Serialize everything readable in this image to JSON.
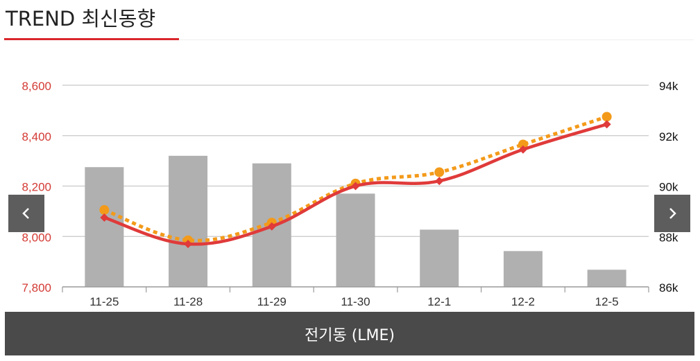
{
  "header": {
    "title": "TREND 최신동향"
  },
  "caption": "전기동 (LME)",
  "nav": {
    "prev_icon": "chevron-left-icon",
    "next_icon": "chevron-right-icon"
  },
  "colors": {
    "accent": "#d9262c",
    "left_axis_text": "#d33a34",
    "bar": "#b0b0b0",
    "line_solid": "#e03a3a",
    "line_dotted": "#f39a1a",
    "caption_bg": "#4a4a4a",
    "nav_bg": "#5d5d5d"
  },
  "chart_data": {
    "type": "bar",
    "categories": [
      "11-25",
      "11-28",
      "11-29",
      "11-30",
      "12-1",
      "12-2",
      "12-5"
    ],
    "y_left": {
      "ticks": [
        "7,800",
        "8,000",
        "8,200",
        "8,400",
        "8,600"
      ],
      "range": [
        7800,
        8600
      ]
    },
    "y_right": {
      "ticks": [
        "86k",
        "88k",
        "90k",
        "92k",
        "94k"
      ],
      "range": [
        86000,
        94000
      ]
    },
    "bars": {
      "axis": "left",
      "values": [
        8275,
        8320,
        8290,
        8170,
        8027,
        7942,
        7868
      ]
    },
    "lines": [
      {
        "axis": "left",
        "style": "solid",
        "marker": "diamond",
        "values": [
          8075,
          7970,
          8040,
          8200,
          8220,
          8345,
          8445
        ]
      },
      {
        "axis": "left",
        "style": "dotted",
        "marker": "circle",
        "values": [
          8105,
          7985,
          8055,
          8210,
          8255,
          8365,
          8475
        ]
      }
    ],
    "grid": true,
    "legend": "none"
  }
}
